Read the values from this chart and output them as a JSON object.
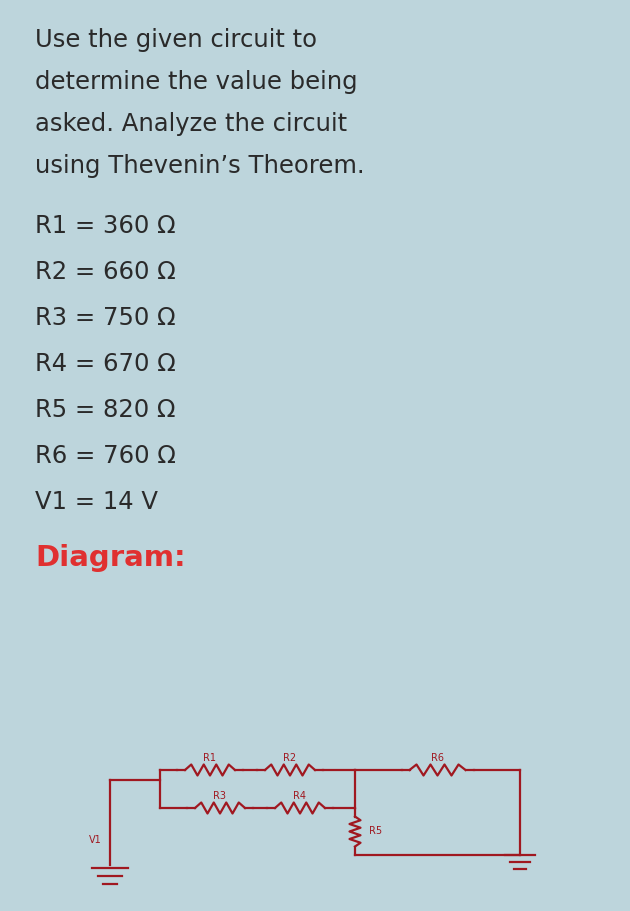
{
  "bg_color": "#bdd5dc",
  "title_lines": [
    "Use the given circuit to",
    "determine the value being",
    "asked. Analyze the circuit",
    "using Thevenin’s Theorem."
  ],
  "params": [
    "R1 = 360 Ω",
    "R2 = 660 Ω",
    "R3 = 750 Ω",
    "R4 = 670 Ω",
    "R5 = 820 Ω",
    "R6 = 760 Ω",
    "V1 = 14 V"
  ],
  "diagram_label": "Diagram:",
  "diagram_color": "#e03030",
  "wire_color": "#a01820",
  "text_color": "#2a2a2a",
  "title_fontsize": 17.5,
  "param_fontsize": 17.5,
  "diagram_fontsize": 21,
  "circuit_label_fontsize": 7.0,
  "resistor_label_fontsize": 7.0
}
